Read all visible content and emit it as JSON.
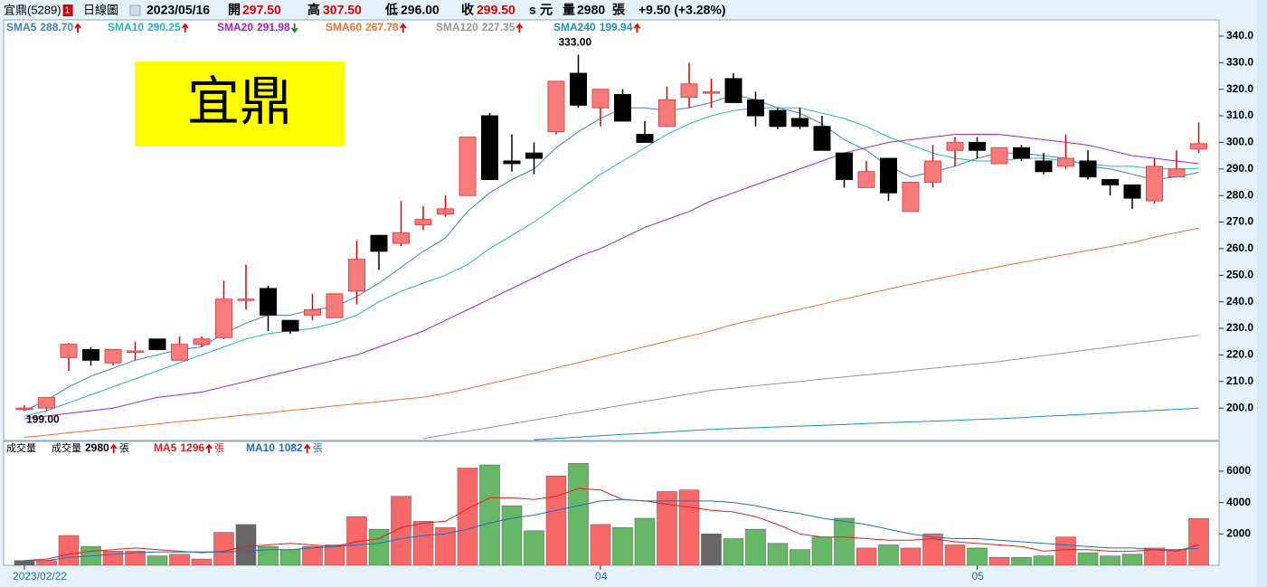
{
  "header": {
    "stock": "宜鼎(5289)",
    "badge": "1",
    "period": "日線圖",
    "date": "2023/05/16",
    "open_label": "開",
    "open": "297.50",
    "high_label": "高",
    "high": "307.50",
    "low_label": "低",
    "low": "296.00",
    "close_label": "收",
    "close": "299.50",
    "s": "s",
    "currency": "元",
    "volume_label": "量",
    "volume": "2980",
    "volume_unit": "張",
    "change": "+9.50 (+3.28%)"
  },
  "chart_data": [
    {
      "type": "candlestick",
      "watermark": "宜鼎",
      "high_label": "333.00",
      "low_label": "199.00",
      "categories": [
        "2023/02/22",
        null,
        null,
        null,
        null,
        null,
        null,
        null,
        null,
        null,
        null,
        null,
        null,
        null,
        null,
        null,
        null,
        null,
        null,
        null,
        null,
        null,
        null,
        null,
        null,
        null,
        "04",
        null,
        null,
        null,
        null,
        null,
        null,
        null,
        null,
        null,
        null,
        null,
        null,
        null,
        null,
        null,
        null,
        "05",
        null,
        null,
        null,
        null,
        null,
        null,
        null,
        null,
        null,
        null
      ],
      "open": [
        200,
        200,
        219,
        222,
        217,
        221,
        226,
        218,
        224,
        226.5,
        241,
        245,
        233,
        235,
        234,
        244,
        265,
        262,
        269,
        273,
        280,
        310,
        293,
        296,
        304,
        326,
        313,
        318,
        303,
        306,
        317,
        319,
        324,
        316,
        312,
        309,
        306,
        296,
        283,
        294,
        274,
        285,
        297,
        300,
        292,
        298,
        293,
        291,
        293,
        286,
        284,
        278,
        287,
        297.5
      ],
      "high": [
        201,
        204,
        224.5,
        223,
        222,
        225,
        226,
        227,
        227,
        248,
        254,
        246,
        233,
        243,
        243,
        263,
        265,
        278,
        276,
        280,
        302,
        311,
        303,
        300,
        323,
        333,
        320,
        320,
        308,
        321,
        330,
        324,
        326,
        319,
        313,
        313,
        310,
        296,
        293,
        294,
        285,
        299,
        302,
        302,
        298,
        299,
        296,
        303,
        297,
        286,
        284,
        294,
        297,
        307.5
      ],
      "low": [
        199,
        199,
        214,
        216,
        216,
        218,
        222,
        218,
        223,
        226,
        237,
        229,
        228,
        233,
        234,
        239,
        252,
        261,
        267,
        272,
        280,
        286,
        289,
        288,
        303,
        313,
        306,
        308,
        300,
        306,
        313,
        313,
        315,
        306,
        305,
        305,
        297,
        283,
        283,
        278,
        274,
        283,
        291,
        294,
        292,
        293,
        288,
        290,
        286,
        280,
        275,
        277,
        287,
        296
      ],
      "close": [
        200,
        204,
        224,
        218,
        222,
        221.5,
        222,
        224,
        226,
        241,
        241,
        235,
        229,
        237,
        243,
        256,
        259,
        266,
        271,
        275,
        302,
        286,
        292,
        294,
        323,
        314,
        320,
        308,
        300,
        316,
        322,
        319,
        315,
        310,
        306,
        306,
        297,
        286,
        289,
        281,
        285,
        293,
        300,
        297,
        298,
        294,
        289,
        294,
        287,
        284,
        279,
        291,
        290,
        299.5
      ],
      "up_color": "#f77b7b",
      "down_color": "#000000",
      "series": [
        {
          "name": "SMA5",
          "value_label": "288.70",
          "trend": "up",
          "color": "#3b7dd8",
          "values": [
            199,
            203,
            208,
            212,
            215,
            218,
            220,
            222,
            223,
            228,
            232,
            235,
            235,
            237,
            238,
            242,
            247,
            253,
            259,
            264,
            274,
            281,
            286,
            290,
            298,
            304,
            309,
            313,
            313,
            312,
            313,
            315,
            318,
            316,
            313,
            311,
            307,
            301,
            297,
            291,
            287,
            289,
            291,
            294,
            296,
            296,
            295,
            294,
            291,
            290,
            288,
            286,
            287,
            288.7
          ]
        },
        {
          "name": "SMA10",
          "value_label": "290.25",
          "trend": "up",
          "color": "#1fb5c9",
          "values": [
            197,
            199,
            202,
            205,
            208,
            211,
            214,
            217,
            220,
            223,
            226,
            228,
            229,
            230,
            232,
            235,
            240,
            244,
            247,
            250,
            254,
            260,
            265,
            270,
            276,
            282,
            288,
            293,
            298,
            303,
            307,
            310,
            312,
            313,
            313,
            313,
            311,
            309,
            306,
            302,
            299,
            296,
            294,
            293,
            293,
            294,
            294,
            293,
            292,
            291,
            291,
            290,
            290,
            290.25
          ]
        },
        {
          "name": "SMA20",
          "value_label": "291.98",
          "trend": "down",
          "color": "#a020d0",
          "values": [
            196,
            197,
            198,
            199,
            200,
            202,
            204,
            205,
            206,
            208,
            210,
            212,
            214,
            216,
            218,
            220,
            223,
            226,
            229,
            233,
            237,
            241,
            245,
            249,
            253,
            257,
            260,
            264,
            268,
            271,
            274,
            278,
            281,
            284,
            287,
            290,
            293,
            296,
            298,
            300,
            301,
            302,
            303,
            303,
            303,
            302,
            301,
            300,
            299,
            297,
            295,
            294,
            293,
            291.98
          ]
        },
        {
          "name": "SMA60",
          "value_label": "267.78",
          "trend": "up",
          "color": "#f07030",
          "values": [
            189,
            189.8,
            190.7,
            191.5,
            192.4,
            193.2,
            194,
            194.9,
            195.7,
            196.6,
            197.4,
            198.2,
            199.1,
            199.9,
            200.8,
            201.6,
            202.4,
            203.3,
            204.1,
            205.5,
            207.3,
            209.2,
            211.1,
            213.1,
            215.1,
            217.1,
            219.1,
            221.1,
            223.1,
            225.1,
            227.1,
            229.1,
            231.5,
            233.4,
            235.3,
            237.2,
            239.1,
            241,
            242.9,
            244.8,
            246.6,
            248.3,
            250,
            251.6,
            253.2,
            254.8,
            256.3,
            257.8,
            259.3,
            260.8,
            262.3,
            264.3,
            266,
            267.78
          ]
        },
        {
          "name": "SMA120",
          "value_label": "227.35",
          "trend": "up",
          "color": "#959595",
          "values": [
            null,
            null,
            null,
            null,
            null,
            null,
            null,
            null,
            null,
            null,
            null,
            null,
            null,
            null,
            null,
            null,
            null,
            null,
            188.5,
            189.9,
            191.3,
            192.7,
            194.1,
            195.5,
            196.9,
            198.3,
            199.7,
            201.1,
            202.5,
            203.9,
            205.3,
            206.7,
            207.5,
            208.4,
            209.2,
            210,
            210.9,
            211.7,
            212.5,
            213.3,
            214.2,
            215,
            215.8,
            216.7,
            217.5,
            218.6,
            219.7,
            220.8,
            221.9,
            223,
            224.1,
            225.2,
            226.3,
            227.35
          ]
        },
        {
          "name": "SMA240",
          "value_label": "199.94",
          "trend": "up",
          "color": "#1e8ad0",
          "values": [
            null,
            null,
            null,
            null,
            null,
            null,
            null,
            null,
            null,
            null,
            null,
            null,
            null,
            null,
            null,
            null,
            null,
            null,
            null,
            null,
            null,
            null,
            null,
            188.1,
            188.6,
            189.1,
            189.6,
            190.1,
            190.5,
            191,
            191.5,
            192,
            192.3,
            192.6,
            192.9,
            193.2,
            193.5,
            193.8,
            194.2,
            194.5,
            194.8,
            195.1,
            195.4,
            195.7,
            196,
            196.4,
            196.9,
            197.3,
            197.7,
            198.2,
            198.6,
            199.1,
            199.5,
            199.94
          ]
        }
      ],
      "ylim": [
        187.8,
        346.1
      ],
      "yticks": [
        {
          "value": 200,
          "label": "200.0"
        },
        {
          "value": 210,
          "label": "210.0"
        },
        {
          "value": 220,
          "label": "220.0"
        },
        {
          "value": 230,
          "label": "230.0"
        },
        {
          "value": 240,
          "label": "240.0"
        },
        {
          "value": 250,
          "label": "250.0"
        },
        {
          "value": 260,
          "label": "260.0"
        },
        {
          "value": 270,
          "label": "270.0"
        },
        {
          "value": 280,
          "label": "280.0"
        },
        {
          "value": 290,
          "label": "290.0"
        },
        {
          "value": 300,
          "label": "300.0"
        },
        {
          "value": 310,
          "label": "310.0"
        },
        {
          "value": 320,
          "label": "320.0"
        },
        {
          "value": 330,
          "label": "330.0"
        },
        {
          "value": 340,
          "label": "340.0"
        }
      ],
      "grid": false
    },
    {
      "type": "bar",
      "title": "成交量",
      "legend_label": "成交量",
      "last_label": "2980",
      "last_trend": "up",
      "unit": "張",
      "values": [
        300,
        300,
        1900,
        1200,
        900,
        900,
        600,
        700,
        400,
        2100,
        2600,
        1200,
        1000,
        1200,
        1300,
        3100,
        2300,
        4400,
        2800,
        2400,
        6200,
        6400,
        3800,
        2200,
        5700,
        6500,
        2600,
        2400,
        3000,
        4700,
        4800,
        2000,
        1700,
        2300,
        1400,
        1000,
        1800,
        3000,
        1100,
        1300,
        1100,
        2000,
        1300,
        1100,
        500,
        500,
        600,
        1800,
        800,
        600,
        700,
        1100,
        1000,
        2980
      ],
      "up_color": "#f96868",
      "down_color": "#66b866",
      "flat_color": "#666666",
      "series": [
        {
          "name": "MA5",
          "value_label": "1296",
          "trend": "up",
          "color": "#e02020",
          "values": [
            300,
            400,
            700,
            900,
            1000,
            1100,
            1000,
            900,
            800,
            900,
            1200,
            1300,
            1400,
            1300,
            1200,
            1500,
            1700,
            2400,
            2700,
            2800,
            3600,
            4300,
            4300,
            4200,
            4400,
            4900,
            4800,
            4200,
            4100,
            3900,
            3700,
            3500,
            3400,
            3100,
            2600,
            2000,
            1800,
            1800,
            1700,
            1600,
            1600,
            1700,
            1500,
            1400,
            1300,
            1200,
            900,
            1000,
            1000,
            900,
            900,
            1000,
            900,
            1296
          ]
        },
        {
          "name": "MA10",
          "value_label": "1082",
          "trend": "up",
          "color": "#1e6fc0",
          "values": [
            300,
            300,
            500,
            600,
            700,
            800,
            850,
            850,
            850,
            850,
            900,
            1000,
            1000,
            1100,
            1200,
            1300,
            1400,
            1700,
            1900,
            2000,
            2300,
            2700,
            3000,
            3200,
            3500,
            3800,
            4100,
            4200,
            4100,
            4100,
            4100,
            4100,
            4000,
            3800,
            3500,
            3300,
            3000,
            2800,
            2600,
            2300,
            2000,
            1800,
            1700,
            1700,
            1600,
            1500,
            1400,
            1300,
            1200,
            1100,
            1100,
            1000,
            1000,
            1082
          ]
        }
      ],
      "ylim": [
        0,
        7900
      ],
      "yticks": [
        2000,
        4000,
        6000
      ],
      "grid": false
    }
  ]
}
